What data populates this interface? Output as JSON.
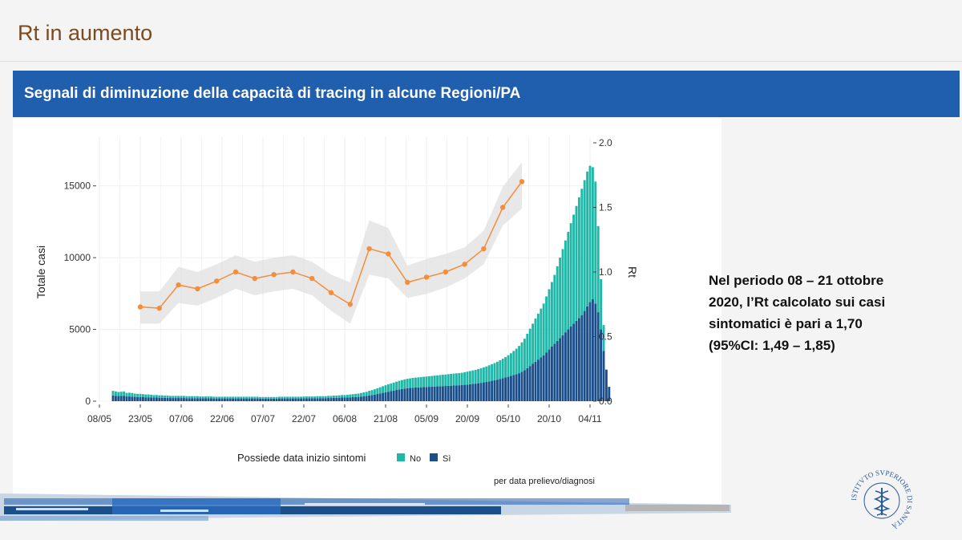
{
  "slide": {
    "title": "Rt in aumento",
    "banner": "Segnali di diminuzione della capacità di tracing in alcune Regioni/PA",
    "note_lines": [
      "Nel periodo 08 – 21 ottobre",
      "2020, l’Rt calcolato sui casi",
      "sintomatici è pari a 1,70",
      "(95%CI: 1,49 – 1,85)"
    ],
    "logo_text": "ISTITVTO SVPERIORE DI SANITÀ",
    "colors": {
      "banner": "#1f5fae",
      "title": "#7b4a1f",
      "no": "#1fb8a8",
      "si": "#1a4f8c",
      "rt": "#f28e3c"
    }
  },
  "chart_data": {
    "type": "bar",
    "xlabel": "",
    "ylabel": "Totale casi",
    "y2label": "Rt",
    "ylim": [
      0,
      18000
    ],
    "y2lim": [
      0,
      2.0
    ],
    "yticks": [
      0,
      5000,
      10000,
      15000
    ],
    "y2ticks": [
      "0.0",
      "0.5",
      "1.0",
      "1.5",
      "2.0"
    ],
    "xlim": [
      "2020-05-08",
      "2020-11-04"
    ],
    "xticks": [
      "08/05",
      "23/05",
      "07/06",
      "22/06",
      "07/07",
      "22/07",
      "06/08",
      "21/08",
      "05/09",
      "20/09",
      "05/10",
      "20/10",
      "04/11"
    ],
    "legend": {
      "title": "Possiede data inizio sintomi",
      "placement": "bottom",
      "items": [
        "No",
        "Sì"
      ]
    },
    "caption": "per data prelievo/diagnosi",
    "bar_start_date": "2020-05-13",
    "series": [
      {
        "name": "No",
        "values": [
          320,
          300,
          280,
          290,
          300,
          250,
          260,
          250,
          230,
          220,
          220,
          210,
          200,
          200,
          190,
          180,
          180,
          170,
          170,
          160,
          160,
          150,
          150,
          150,
          150,
          150,
          150,
          140,
          140,
          140,
          140,
          140,
          130,
          130,
          130,
          130,
          130,
          120,
          120,
          120,
          120,
          120,
          120,
          120,
          120,
          120,
          120,
          120,
          120,
          120,
          120,
          120,
          120,
          120,
          110,
          110,
          110,
          110,
          110,
          110,
          110,
          120,
          120,
          120,
          120,
          120,
          120,
          120,
          120,
          120,
          130,
          130,
          130,
          130,
          130,
          140,
          140,
          140,
          140,
          150,
          150,
          160,
          160,
          170,
          180,
          180,
          190,
          200,
          210,
          220,
          230,
          250,
          270,
          290,
          320,
          340,
          370,
          400,
          430,
          460,
          490,
          520,
          540,
          560,
          580,
          600,
          620,
          640,
          660,
          670,
          680,
          690,
          700,
          710,
          720,
          730,
          740,
          750,
          760,
          770,
          780,
          790,
          800,
          810,
          820,
          830,
          840,
          850,
          860,
          880,
          900,
          920,
          940,
          960,
          990,
          1020,
          1050,
          1080,
          1120,
          1160,
          1200,
          1250,
          1300,
          1360,
          1420,
          1500,
          1580,
          1680,
          1780,
          1900,
          2050,
          2200,
          2400,
          2600,
          2800,
          3000,
          3200,
          3400,
          3600,
          3900,
          4200,
          4500,
          4800,
          5200,
          5600,
          6000,
          6400,
          6800,
          7200,
          7600,
          8000,
          8400,
          8800,
          9100,
          9400,
          9500,
          9200,
          8500,
          6000,
          3500,
          1800
        ]
      },
      {
        "name": "Sì",
        "values": [
          400,
          380,
          360,
          370,
          380,
          330,
          330,
          320,
          300,
          290,
          290,
          280,
          270,
          270,
          260,
          250,
          250,
          240,
          240,
          230,
          230,
          220,
          220,
          220,
          220,
          220,
          220,
          210,
          210,
          210,
          210,
          210,
          200,
          200,
          200,
          200,
          200,
          190,
          190,
          190,
          190,
          190,
          190,
          190,
          190,
          190,
          190,
          190,
          190,
          190,
          190,
          190,
          190,
          190,
          180,
          180,
          180,
          180,
          180,
          180,
          180,
          190,
          190,
          190,
          190,
          190,
          190,
          190,
          190,
          190,
          200,
          200,
          200,
          200,
          200,
          210,
          210,
          210,
          210,
          220,
          220,
          230,
          230,
          240,
          250,
          250,
          260,
          270,
          280,
          290,
          300,
          320,
          340,
          360,
          400,
          430,
          460,
          500,
          540,
          580,
          620,
          660,
          700,
          740,
          780,
          820,
          850,
          880,
          900,
          920,
          940,
          950,
          960,
          970,
          980,
          990,
          1000,
          1010,
          1020,
          1030,
          1040,
          1050,
          1060,
          1070,
          1080,
          1090,
          1100,
          1110,
          1120,
          1140,
          1160,
          1180,
          1200,
          1220,
          1250,
          1280,
          1310,
          1340,
          1380,
          1420,
          1460,
          1500,
          1550,
          1600,
          1650,
          1700,
          1760,
          1820,
          1880,
          1950,
          2050,
          2150,
          2300,
          2450,
          2600,
          2750,
          2900,
          3050,
          3200,
          3400,
          3600,
          3800,
          4000,
          4200,
          4400,
          4600,
          4800,
          5000,
          5200,
          5400,
          5600,
          5800,
          6000,
          6300,
          6600,
          6900,
          7100,
          6800,
          6200,
          5000,
          3500,
          2200,
          1000
        ]
      },
      {
        "name": "Rt",
        "axis": "right",
        "x": [
          "2020-05-23",
          "2020-05-30",
          "2020-06-06",
          "2020-06-13",
          "2020-06-20",
          "2020-06-27",
          "2020-07-04",
          "2020-07-11",
          "2020-07-18",
          "2020-07-25",
          "2020-08-01",
          "2020-08-08",
          "2020-08-15",
          "2020-08-22",
          "2020-08-29",
          "2020-09-05",
          "2020-09-12",
          "2020-09-19",
          "2020-09-26",
          "2020-10-03",
          "2020-10-10"
        ],
        "values": [
          0.73,
          0.72,
          0.9,
          0.87,
          0.93,
          1.0,
          0.95,
          0.98,
          1.0,
          0.95,
          0.84,
          0.75,
          1.18,
          1.14,
          0.92,
          0.96,
          1.0,
          1.06,
          1.18,
          1.5,
          1.7
        ],
        "ci_lower": [
          0.6,
          0.6,
          0.76,
          0.74,
          0.8,
          0.87,
          0.82,
          0.85,
          0.87,
          0.82,
          0.7,
          0.6,
          0.98,
          0.95,
          0.8,
          0.83,
          0.88,
          0.95,
          1.06,
          1.36,
          1.49
        ],
        "ci_upper": [
          0.85,
          0.85,
          1.04,
          1.0,
          1.06,
          1.13,
          1.08,
          1.11,
          1.13,
          1.08,
          0.98,
          0.92,
          1.4,
          1.34,
          1.05,
          1.1,
          1.14,
          1.19,
          1.32,
          1.66,
          1.85
        ]
      }
    ]
  }
}
